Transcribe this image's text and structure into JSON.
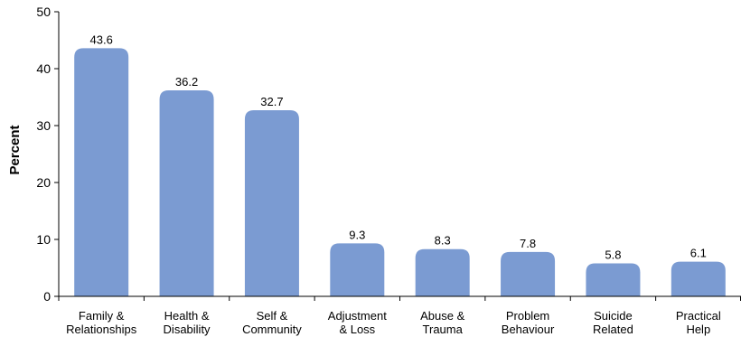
{
  "chart_data": {
    "type": "bar",
    "title": "",
    "xlabel": "",
    "ylabel": "Percent",
    "ylim": [
      0,
      50
    ],
    "yticks": [
      0,
      10,
      20,
      30,
      40,
      50
    ],
    "grid": false,
    "categories": [
      [
        "Family &",
        "Relationships"
      ],
      [
        "Health &",
        "Disability"
      ],
      [
        "Self &",
        "Community"
      ],
      [
        "Adjustment",
        "& Loss"
      ],
      [
        "Abuse &",
        "Trauma"
      ],
      [
        "Problem",
        "Behaviour"
      ],
      [
        "Suicide",
        "Related"
      ],
      [
        "Practical",
        "Help"
      ]
    ],
    "values": [
      43.6,
      36.2,
      32.7,
      9.3,
      8.3,
      7.8,
      5.8,
      6.1
    ],
    "data_labels": [
      "43.6",
      "36.2",
      "32.7",
      "9.3",
      "8.3",
      "7.8",
      "5.8",
      "6.1"
    ],
    "bar_color": "#7b9bd2"
  }
}
